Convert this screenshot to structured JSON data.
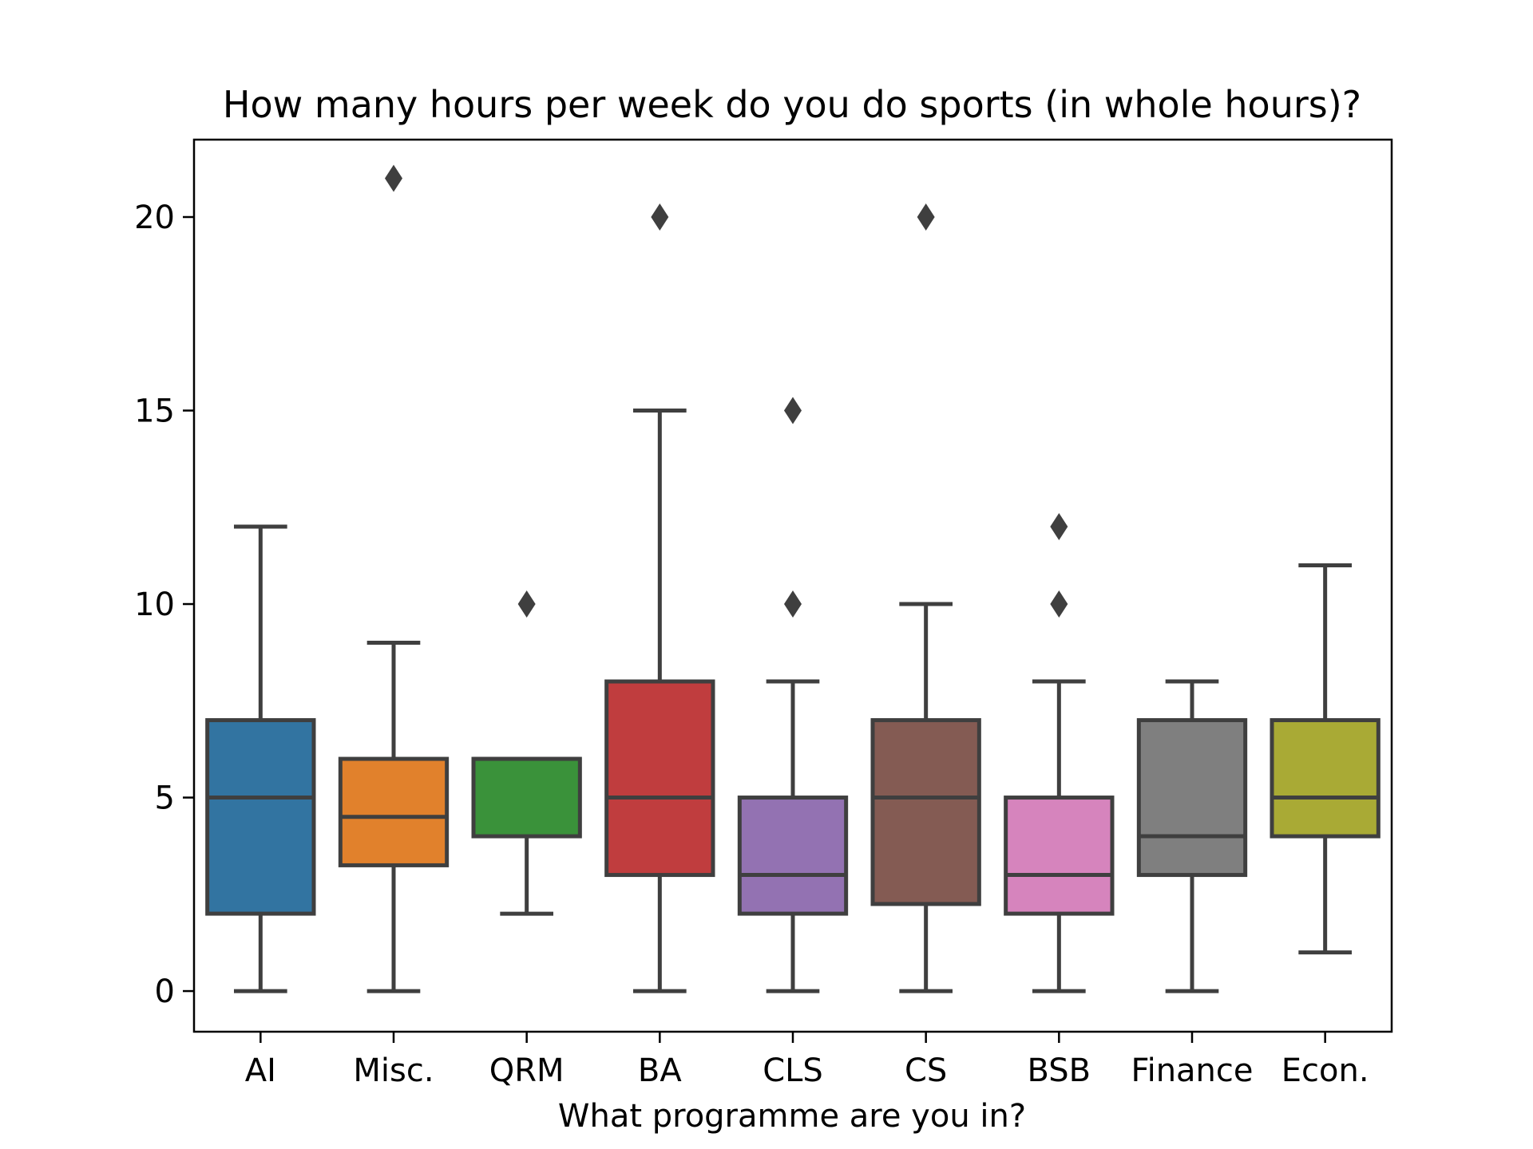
{
  "chart_data": {
    "type": "box",
    "title": "How many hours per week do you do sports (in whole hours)?",
    "xlabel": "What programme are you in?",
    "ylabel": "",
    "ylim": [
      -1.05,
      22
    ],
    "yticks": [
      0,
      5,
      10,
      15,
      20
    ],
    "categories": [
      "AI",
      "Misc.",
      "QRM",
      "BA",
      "CLS",
      "CS",
      "BSB",
      "Finance",
      "Econ."
    ],
    "boxes": [
      {
        "category": "AI",
        "color": "#3274a1",
        "whisker_low": 0,
        "q1": 2,
        "median": 5,
        "q3": 7,
        "whisker_high": 12,
        "outliers": []
      },
      {
        "category": "Misc.",
        "color": "#e1812c",
        "whisker_low": 0,
        "q1": 3.25,
        "median": 4.5,
        "q3": 6,
        "whisker_high": 9,
        "outliers": [
          21
        ]
      },
      {
        "category": "QRM",
        "color": "#3a923a",
        "whisker_low": 2,
        "q1": 4,
        "median": 6,
        "q3": 6,
        "whisker_high": 6,
        "outliers": [
          10
        ]
      },
      {
        "category": "BA",
        "color": "#c03d3e",
        "whisker_low": 0,
        "q1": 3,
        "median": 5,
        "q3": 8,
        "whisker_high": 15,
        "outliers": [
          20
        ]
      },
      {
        "category": "CLS",
        "color": "#9372b2",
        "whisker_low": 0,
        "q1": 2,
        "median": 3,
        "q3": 5,
        "whisker_high": 8,
        "outliers": [
          10,
          15
        ]
      },
      {
        "category": "CS",
        "color": "#845b53",
        "whisker_low": 0,
        "q1": 2.25,
        "median": 5,
        "q3": 7,
        "whisker_high": 10,
        "outliers": [
          20
        ]
      },
      {
        "category": "BSB",
        "color": "#d684bd",
        "whisker_low": 0,
        "q1": 2,
        "median": 3,
        "q3": 5,
        "whisker_high": 8,
        "outliers": [
          10,
          12
        ]
      },
      {
        "category": "Finance",
        "color": "#7f7f7f",
        "whisker_low": 0,
        "q1": 3,
        "median": 4,
        "q3": 7,
        "whisker_high": 8,
        "outliers": []
      },
      {
        "category": "Econ.",
        "color": "#a9aa35",
        "whisker_low": 1,
        "q1": 4,
        "median": 5,
        "q3": 7,
        "whisker_high": 11,
        "outliers": []
      }
    ],
    "grid": false,
    "legend": "none"
  }
}
